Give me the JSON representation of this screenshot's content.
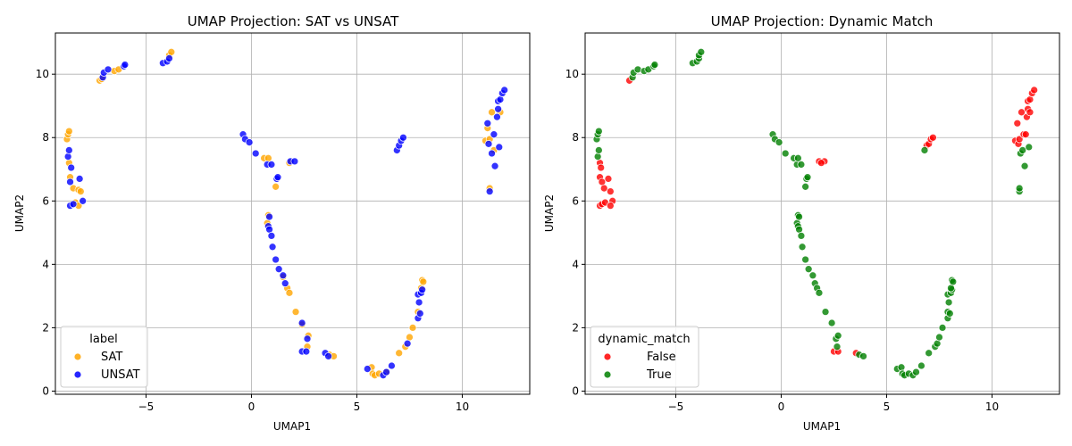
{
  "chart_data": [
    {
      "type": "scatter",
      "title": "UMAP Projection: SAT vs UNSAT",
      "xlabel": "UMAP1",
      "ylabel": "UMAP2",
      "xlim": [
        -9.3,
        13.2
      ],
      "ylim": [
        -0.1,
        11.3
      ],
      "xticks": [
        -5,
        0,
        5,
        10
      ],
      "yticks": [
        0,
        2,
        4,
        6,
        8,
        10
      ],
      "grid": true,
      "legend": {
        "title": "label",
        "placement": "lower-left"
      },
      "series": [
        {
          "name": "SAT",
          "color": "#ffa500",
          "points": [
            [
              -8.75,
              7.95
            ],
            [
              -8.7,
              8.1
            ],
            [
              -8.65,
              8.2
            ],
            [
              -8.65,
              7.2
            ],
            [
              -8.6,
              6.75
            ],
            [
              -8.45,
              6.4
            ],
            [
              -8.35,
              5.95
            ],
            [
              -8.2,
              5.85
            ],
            [
              -8.2,
              6.35
            ],
            [
              -8.1,
              6.3
            ],
            [
              -7.2,
              9.8
            ],
            [
              -7.1,
              9.85
            ],
            [
              -6.5,
              10.1
            ],
            [
              -6.3,
              10.15
            ],
            [
              -3.9,
              10.6
            ],
            [
              -3.8,
              10.7
            ],
            [
              0.6,
              7.35
            ],
            [
              0.8,
              7.35
            ],
            [
              1.15,
              6.45
            ],
            [
              1.8,
              7.2
            ],
            [
              0.75,
              5.3
            ],
            [
              0.8,
              5.55
            ],
            [
              1.5,
              3.6
            ],
            [
              1.7,
              3.25
            ],
            [
              1.8,
              3.1
            ],
            [
              2.1,
              2.5
            ],
            [
              2.4,
              2.1
            ],
            [
              2.7,
              1.75
            ],
            [
              2.65,
              1.4
            ],
            [
              3.7,
              1.15
            ],
            [
              3.9,
              1.1
            ],
            [
              5.7,
              0.75
            ],
            [
              5.75,
              0.55
            ],
            [
              5.85,
              0.5
            ],
            [
              6.05,
              0.55
            ],
            [
              6.4,
              0.6
            ],
            [
              7.0,
              1.2
            ],
            [
              7.3,
              1.4
            ],
            [
              7.5,
              1.7
            ],
            [
              7.65,
              2.0
            ],
            [
              7.9,
              2.5
            ],
            [
              8.05,
              3.25
            ],
            [
              8.1,
              3.5
            ],
            [
              8.15,
              3.45
            ],
            [
              11.1,
              7.9
            ],
            [
              11.2,
              8.3
            ],
            [
              11.4,
              8.8
            ],
            [
              11.3,
              7.95
            ],
            [
              11.5,
              7.6
            ],
            [
              11.8,
              8.8
            ],
            [
              11.3,
              6.4
            ]
          ]
        },
        {
          "name": "UNSAT",
          "color": "#0000ff",
          "points": [
            [
              -8.7,
              7.4
            ],
            [
              -8.65,
              7.6
            ],
            [
              -8.55,
              7.05
            ],
            [
              -8.6,
              6.6
            ],
            [
              -8.6,
              5.85
            ],
            [
              -8.45,
              5.9
            ],
            [
              -8.15,
              6.7
            ],
            [
              -8.0,
              6.0
            ],
            [
              -7.05,
              9.9
            ],
            [
              -7.0,
              10.05
            ],
            [
              -6.8,
              10.15
            ],
            [
              -6.05,
              10.25
            ],
            [
              -6.0,
              10.3
            ],
            [
              -4.2,
              10.35
            ],
            [
              -4.0,
              10.4
            ],
            [
              -3.9,
              10.5
            ],
            [
              -0.4,
              8.1
            ],
            [
              -0.3,
              7.95
            ],
            [
              -0.1,
              7.85
            ],
            [
              0.2,
              7.5
            ],
            [
              0.75,
              7.15
            ],
            [
              0.95,
              7.15
            ],
            [
              1.2,
              6.7
            ],
            [
              1.25,
              6.75
            ],
            [
              1.85,
              7.25
            ],
            [
              2.05,
              7.25
            ],
            [
              0.85,
              5.5
            ],
            [
              0.8,
              5.2
            ],
            [
              0.85,
              5.1
            ],
            [
              0.95,
              4.9
            ],
            [
              1.0,
              4.55
            ],
            [
              1.15,
              4.15
            ],
            [
              1.3,
              3.85
            ],
            [
              1.5,
              3.65
            ],
            [
              1.6,
              3.4
            ],
            [
              2.4,
              2.15
            ],
            [
              2.4,
              1.25
            ],
            [
              2.6,
              1.25
            ],
            [
              2.65,
              1.65
            ],
            [
              3.5,
              1.2
            ],
            [
              3.65,
              1.1
            ],
            [
              5.5,
              0.7
            ],
            [
              6.25,
              0.5
            ],
            [
              6.4,
              0.6
            ],
            [
              6.65,
              0.8
            ],
            [
              7.4,
              1.5
            ],
            [
              7.9,
              2.3
            ],
            [
              8.0,
              2.45
            ],
            [
              7.95,
              2.8
            ],
            [
              7.9,
              3.05
            ],
            [
              8.05,
              3.1
            ],
            [
              8.1,
              3.2
            ],
            [
              6.9,
              7.6
            ],
            [
              7.0,
              7.75
            ],
            [
              7.1,
              7.9
            ],
            [
              7.2,
              8.0
            ],
            [
              11.2,
              8.45
            ],
            [
              11.25,
              7.8
            ],
            [
              11.4,
              7.5
            ],
            [
              11.5,
              8.1
            ],
            [
              11.55,
              7.1
            ],
            [
              11.65,
              8.65
            ],
            [
              11.7,
              8.9
            ],
            [
              11.7,
              9.15
            ],
            [
              11.75,
              7.7
            ],
            [
              11.8,
              9.2
            ],
            [
              11.9,
              9.4
            ],
            [
              12.0,
              9.5
            ],
            [
              11.3,
              6.3
            ]
          ]
        }
      ]
    },
    {
      "type": "scatter",
      "title": "UMAP Projection: Dynamic Match",
      "xlabel": "UMAP1",
      "ylabel": "UMAP2",
      "xlim": [
        -9.3,
        13.2
      ],
      "ylim": [
        -0.1,
        11.3
      ],
      "xticks": [
        -5,
        0,
        5,
        10
      ],
      "yticks": [
        0,
        2,
        4,
        6,
        8,
        10
      ],
      "grid": true,
      "legend": {
        "title": "dynamic_match",
        "placement": "lower-left"
      },
      "series": [
        {
          "name": "False",
          "color": "#ff0000",
          "points": [
            [
              -8.6,
              7.2
            ],
            [
              -8.55,
              7.05
            ],
            [
              -8.6,
              6.75
            ],
            [
              -8.5,
              6.6
            ],
            [
              -8.4,
              6.4
            ],
            [
              -8.2,
              6.7
            ],
            [
              -8.1,
              6.3
            ],
            [
              -8.0,
              6.0
            ],
            [
              -8.6,
              5.85
            ],
            [
              -8.5,
              5.9
            ],
            [
              -8.35,
              5.95
            ],
            [
              -8.1,
              5.85
            ],
            [
              -7.2,
              9.8
            ],
            [
              1.8,
              7.25
            ],
            [
              2.05,
              7.25
            ],
            [
              1.9,
              7.2
            ],
            [
              2.5,
              1.25
            ],
            [
              2.7,
              1.25
            ],
            [
              3.55,
              1.2
            ],
            [
              6.9,
              7.75
            ],
            [
              7.0,
              7.8
            ],
            [
              7.1,
              7.95
            ],
            [
              7.2,
              8.0
            ],
            [
              11.1,
              7.9
            ],
            [
              11.2,
              8.45
            ],
            [
              11.25,
              7.8
            ],
            [
              11.4,
              8.8
            ],
            [
              11.3,
              7.95
            ],
            [
              11.5,
              8.1
            ],
            [
              11.6,
              8.1
            ],
            [
              11.65,
              8.65
            ],
            [
              11.7,
              8.9
            ],
            [
              11.8,
              8.8
            ],
            [
              11.7,
              9.15
            ],
            [
              11.8,
              9.2
            ],
            [
              11.9,
              9.4
            ],
            [
              12.0,
              9.5
            ]
          ]
        },
        {
          "name": "True",
          "color": "#008000",
          "points": [
            [
              -8.75,
              7.95
            ],
            [
              -8.7,
              8.1
            ],
            [
              -8.65,
              8.2
            ],
            [
              -8.7,
              7.4
            ],
            [
              -8.65,
              7.6
            ],
            [
              -7.05,
              9.9
            ],
            [
              -7.0,
              10.05
            ],
            [
              -6.8,
              10.15
            ],
            [
              -6.5,
              10.1
            ],
            [
              -6.3,
              10.15
            ],
            [
              -6.05,
              10.25
            ],
            [
              -6.0,
              10.3
            ],
            [
              -4.2,
              10.35
            ],
            [
              -4.0,
              10.4
            ],
            [
              -3.9,
              10.5
            ],
            [
              -3.9,
              10.6
            ],
            [
              -3.8,
              10.7
            ],
            [
              -0.4,
              8.1
            ],
            [
              -0.3,
              7.95
            ],
            [
              -0.1,
              7.85
            ],
            [
              0.2,
              7.5
            ],
            [
              0.6,
              7.35
            ],
            [
              0.75,
              7.15
            ],
            [
              0.8,
              7.35
            ],
            [
              0.95,
              7.15
            ],
            [
              1.15,
              6.45
            ],
            [
              1.2,
              6.7
            ],
            [
              1.25,
              6.75
            ],
            [
              0.75,
              5.3
            ],
            [
              0.8,
              5.55
            ],
            [
              0.85,
              5.5
            ],
            [
              0.8,
              5.2
            ],
            [
              0.85,
              5.1
            ],
            [
              0.95,
              4.9
            ],
            [
              1.0,
              4.55
            ],
            [
              1.15,
              4.15
            ],
            [
              1.3,
              3.85
            ],
            [
              1.5,
              3.65
            ],
            [
              1.6,
              3.4
            ],
            [
              1.7,
              3.25
            ],
            [
              1.8,
              3.1
            ],
            [
              2.1,
              2.5
            ],
            [
              2.4,
              2.15
            ],
            [
              2.6,
              1.65
            ],
            [
              2.7,
              1.75
            ],
            [
              2.65,
              1.4
            ],
            [
              3.7,
              1.15
            ],
            [
              3.9,
              1.1
            ],
            [
              5.5,
              0.7
            ],
            [
              5.7,
              0.75
            ],
            [
              5.75,
              0.55
            ],
            [
              5.85,
              0.5
            ],
            [
              6.05,
              0.55
            ],
            [
              6.25,
              0.5
            ],
            [
              6.4,
              0.6
            ],
            [
              6.65,
              0.8
            ],
            [
              7.0,
              1.2
            ],
            [
              7.3,
              1.4
            ],
            [
              7.4,
              1.5
            ],
            [
              7.5,
              1.7
            ],
            [
              7.65,
              2.0
            ],
            [
              7.9,
              2.3
            ],
            [
              7.9,
              2.5
            ],
            [
              8.0,
              2.45
            ],
            [
              7.95,
              2.8
            ],
            [
              7.9,
              3.05
            ],
            [
              8.05,
              3.1
            ],
            [
              8.1,
              3.2
            ],
            [
              8.05,
              3.25
            ],
            [
              8.1,
              3.5
            ],
            [
              8.15,
              3.45
            ],
            [
              6.8,
              7.6
            ],
            [
              11.3,
              6.3
            ],
            [
              11.3,
              6.4
            ],
            [
              11.35,
              7.5
            ],
            [
              11.45,
              7.6
            ],
            [
              11.55,
              7.1
            ],
            [
              11.75,
              7.7
            ]
          ]
        }
      ]
    }
  ]
}
